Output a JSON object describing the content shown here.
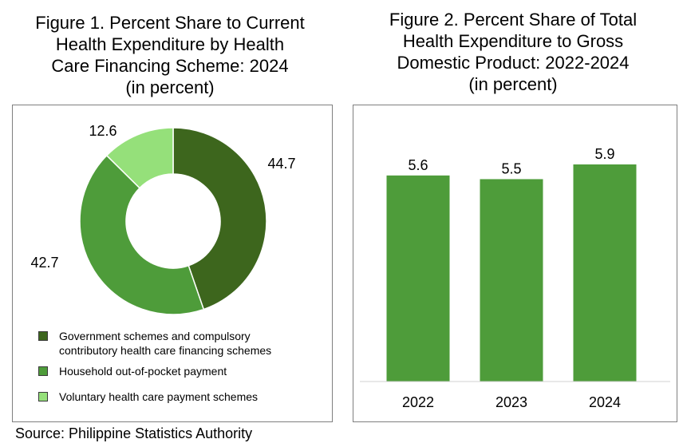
{
  "figure1": {
    "title": "Figure 1. Percent Share to Current\nHealth Expenditure by Health\nCare Financing Scheme: 2024\n(in percent)"
  },
  "figure2": {
    "title": "Figure 2. Percent Share of Total\nHealth Expenditure to Gross\nDomestic Product: 2022-2024\n(in percent)"
  },
  "source": "Source: Philippine Statistics Authority",
  "chart_data": [
    {
      "type": "pie",
      "donut": true,
      "title": "Figure 1. Percent Share to Current Health Expenditure by Health Care Financing Scheme: 2024 (in percent)",
      "labels": [
        "Government schemes and compulsory\ncontributory health care financing schemes",
        "Household out-of-pocket payment",
        "Voluntary health care payment schemes"
      ],
      "values": [
        44.7,
        42.7,
        12.6
      ],
      "value_labels": [
        "44.7",
        "42.7",
        "12.6"
      ],
      "colors": [
        "#3d661d",
        "#4e9c3a",
        "#95e07a"
      ],
      "legend_position": "bottom"
    },
    {
      "type": "bar",
      "title": "Figure 2. Percent Share of Total Health Expenditure to Gross Domestic Product: 2022-2024 (in percent)",
      "categories": [
        "2022",
        "2023",
        "2024"
      ],
      "values": [
        5.6,
        5.5,
        5.9
      ],
      "value_labels": [
        "5.6",
        "5.5",
        "5.9"
      ],
      "color": "#4e9c3a",
      "ylim": [
        0,
        7
      ],
      "grid": false
    }
  ]
}
